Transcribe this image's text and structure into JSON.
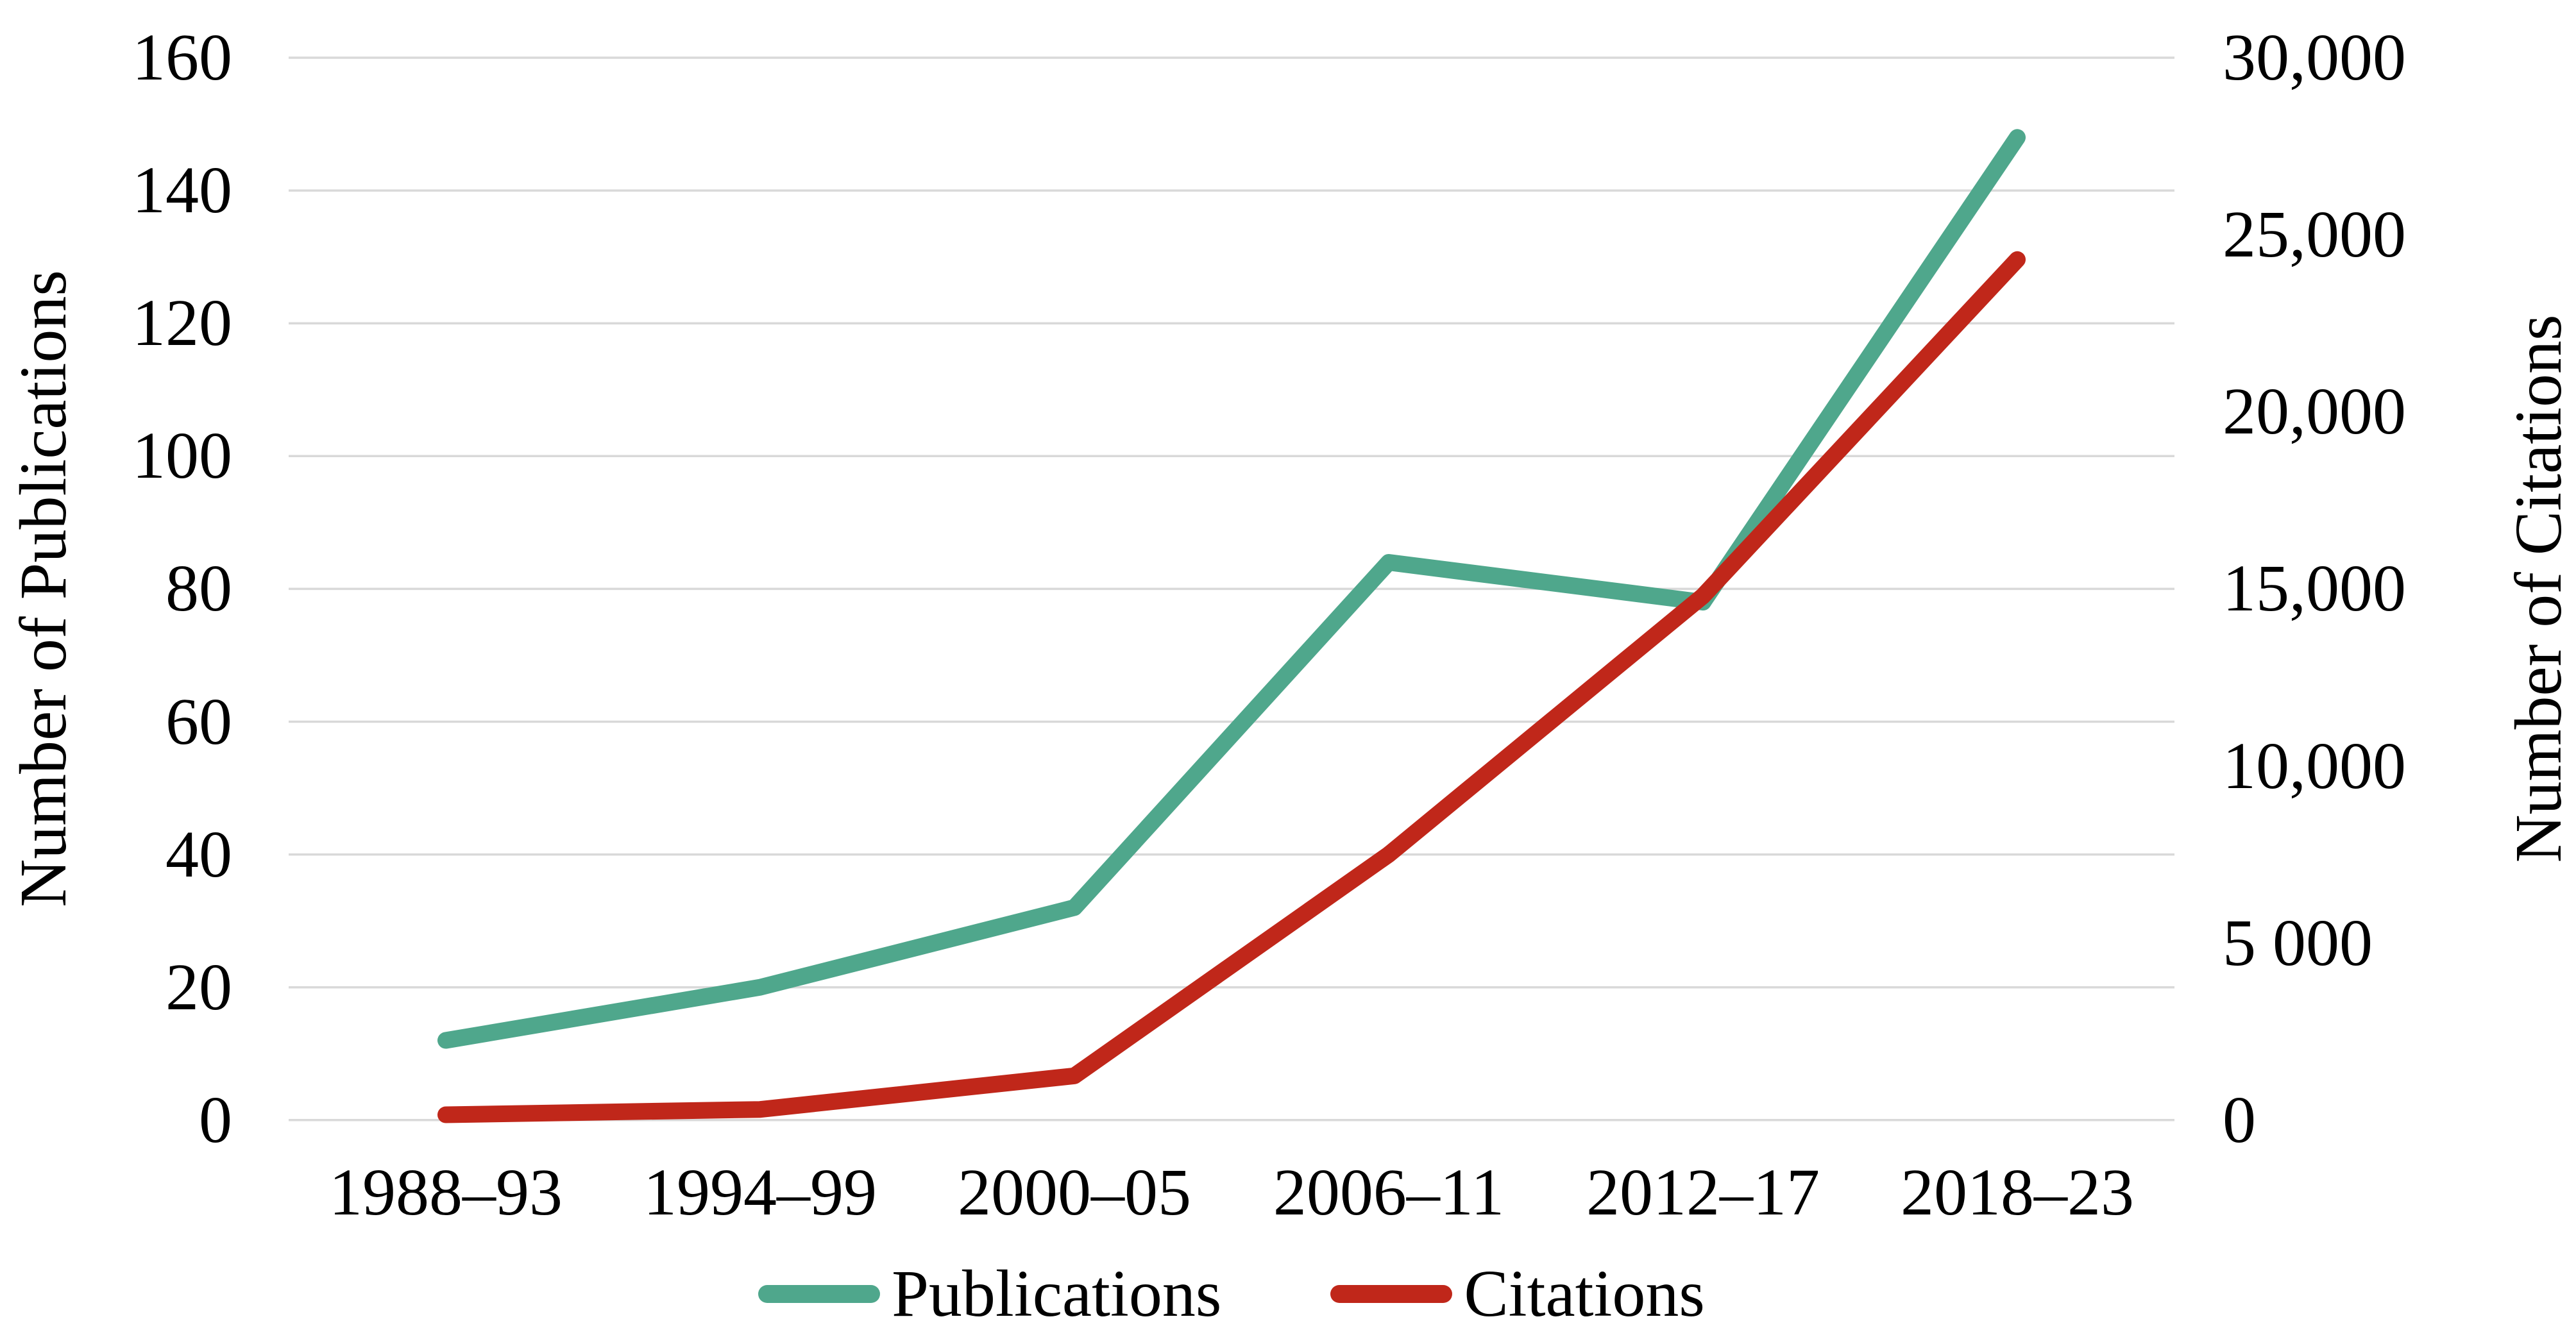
{
  "chart_data": {
    "type": "line",
    "title": "",
    "categories": [
      "1988–93",
      "1994–99",
      "2000–05",
      "2006–11",
      "2012–17",
      "2018–23"
    ],
    "series": [
      {
        "name": "Publications",
        "axis": "left",
        "color": "#4FA78C",
        "values": [
          12,
          20,
          32,
          84,
          78,
          148
        ]
      },
      {
        "name": "Citations",
        "axis": "right",
        "color": "#C0271A",
        "values": [
          150,
          300,
          1250,
          7500,
          14800,
          24300
        ]
      }
    ],
    "left_axis": {
      "label": "Number of Publications",
      "range": [
        0,
        160
      ],
      "ticks": [
        "160",
        "140",
        "120",
        "100",
        "80",
        "60",
        "40",
        "20",
        "0"
      ]
    },
    "right_axis": {
      "label": "Number of Citations",
      "range": [
        0,
        30000
      ],
      "ticks": [
        "30,000",
        "25,000",
        "20,000",
        "15,000",
        "10,000",
        "5 000",
        "0"
      ]
    },
    "grid": true,
    "gridline_color": "#D9D9D9",
    "legend_position": "bottom",
    "legend": [
      "Publications",
      "Citations"
    ]
  }
}
